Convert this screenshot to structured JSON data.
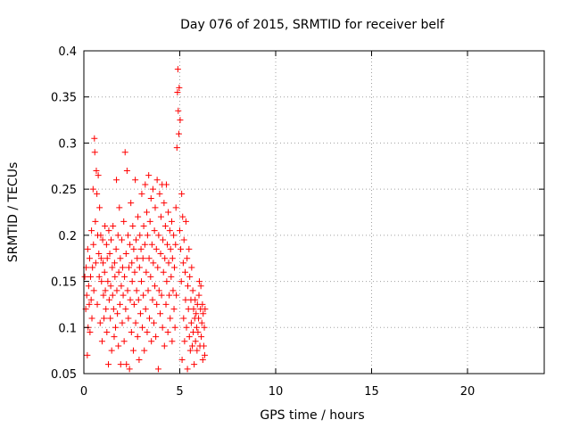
{
  "chart_data": {
    "type": "scatter",
    "title": "Day 076 of 2015, SRMTID for receiver belf",
    "xlabel": "GPS time / hours",
    "ylabel": "SRMTID / TECUs",
    "xlim": [
      0,
      24
    ],
    "ylim": [
      0.05,
      0.4
    ],
    "xticks": [
      0,
      5,
      10,
      15,
      20
    ],
    "xtick_labels": [
      "0",
      "5",
      "10",
      "15",
      "20"
    ],
    "yticks": [
      0.05,
      0.1,
      0.15,
      0.2,
      0.25,
      0.3,
      0.35,
      0.4
    ],
    "ytick_labels": [
      "0.05",
      "0.1",
      "0.15",
      "0.2",
      "0.25",
      "0.3",
      "0.35",
      "0.4"
    ],
    "grid": true,
    "marker": "+",
    "color": "#ff0000",
    "series": [
      {
        "points": [
          [
            0.05,
            0.155
          ],
          [
            0.1,
            0.12
          ],
          [
            0.12,
            0.165
          ],
          [
            0.15,
            0.135
          ],
          [
            0.18,
            0.07
          ],
          [
            0.2,
            0.185
          ],
          [
            0.22,
            0.1
          ],
          [
            0.25,
            0.145
          ],
          [
            0.28,
            0.125
          ],
          [
            0.3,
            0.175
          ],
          [
            0.32,
            0.095
          ],
          [
            0.35,
            0.155
          ],
          [
            0.38,
            0.13
          ],
          [
            0.4,
            0.205
          ],
          [
            0.42,
            0.11
          ],
          [
            0.45,
            0.165
          ],
          [
            0.48,
            0.25
          ],
          [
            0.5,
            0.19
          ],
          [
            0.52,
            0.14
          ],
          [
            0.55,
            0.305
          ],
          [
            0.57,
            0.29
          ],
          [
            0.6,
            0.215
          ],
          [
            0.62,
            0.17
          ],
          [
            0.65,
            0.27
          ],
          [
            0.68,
            0.245
          ],
          [
            0.7,
            0.125
          ],
          [
            0.72,
            0.2
          ],
          [
            0.75,
            0.265
          ],
          [
            0.78,
            0.18
          ],
          [
            0.8,
            0.155
          ],
          [
            0.82,
            0.23
          ],
          [
            0.85,
            0.105
          ],
          [
            0.88,
            0.2
          ],
          [
            0.9,
            0.175
          ],
          [
            0.92,
            0.15
          ],
          [
            0.95,
            0.085
          ],
          [
            0.98,
            0.195
          ],
          [
            1.0,
            0.17
          ],
          [
            1.02,
            0.135
          ],
          [
            1.05,
            0.11
          ],
          [
            1.08,
            0.16
          ],
          [
            1.1,
            0.21
          ],
          [
            1.12,
            0.14
          ],
          [
            1.15,
            0.12
          ],
          [
            1.18,
            0.19
          ],
          [
            1.2,
            0.095
          ],
          [
            1.22,
            0.175
          ],
          [
            1.25,
            0.15
          ],
          [
            1.28,
            0.06
          ],
          [
            1.3,
            0.205
          ],
          [
            1.32,
            0.13
          ],
          [
            1.35,
            0.18
          ],
          [
            1.38,
            0.11
          ],
          [
            1.4,
            0.145
          ],
          [
            1.42,
            0.195
          ],
          [
            1.45,
            0.075
          ],
          [
            1.48,
            0.165
          ],
          [
            1.5,
            0.135
          ],
          [
            1.52,
            0.21
          ],
          [
            1.55,
            0.12
          ],
          [
            1.58,
            0.09
          ],
          [
            1.6,
            0.17
          ],
          [
            1.62,
            0.155
          ],
          [
            1.65,
            0.1
          ],
          [
            1.68,
            0.185
          ],
          [
            1.7,
            0.26
          ],
          [
            1.72,
            0.14
          ],
          [
            1.75,
            0.115
          ],
          [
            1.78,
            0.2
          ],
          [
            1.8,
            0.08
          ],
          [
            1.82,
            0.16
          ],
          [
            1.85,
            0.23
          ],
          [
            1.88,
            0.125
          ],
          [
            1.9,
            0.175
          ],
          [
            1.92,
            0.06
          ],
          [
            1.95,
            0.145
          ],
          [
            1.98,
            0.195
          ],
          [
            2.0,
            0.105
          ],
          [
            2.02,
            0.165
          ],
          [
            2.05,
            0.135
          ],
          [
            2.08,
            0.215
          ],
          [
            2.1,
            0.085
          ],
          [
            2.12,
            0.155
          ],
          [
            2.15,
            0.29
          ],
          [
            2.18,
            0.12
          ],
          [
            2.2,
            0.18
          ],
          [
            2.22,
            0.06
          ],
          [
            2.25,
            0.27
          ],
          [
            2.28,
            0.14
          ],
          [
            2.3,
            0.2
          ],
          [
            2.32,
            0.11
          ],
          [
            2.35,
            0.165
          ],
          [
            2.38,
            0.055
          ],
          [
            2.4,
            0.19
          ],
          [
            2.42,
            0.13
          ],
          [
            2.45,
            0.235
          ],
          [
            2.48,
            0.095
          ],
          [
            2.5,
            0.17
          ],
          [
            2.52,
            0.15
          ],
          [
            2.55,
            0.21
          ],
          [
            2.58,
            0.075
          ],
          [
            2.6,
            0.185
          ],
          [
            2.62,
            0.125
          ],
          [
            2.65,
            0.16
          ],
          [
            2.68,
            0.26
          ],
          [
            2.7,
            0.105
          ],
          [
            2.72,
            0.195
          ],
          [
            2.75,
            0.14
          ],
          [
            2.78,
            0.175
          ],
          [
            2.8,
            0.09
          ],
          [
            2.82,
            0.22
          ],
          [
            2.85,
            0.13
          ],
          [
            2.88,
            0.065
          ],
          [
            2.9,
            0.165
          ],
          [
            2.92,
            0.2
          ],
          [
            2.95,
            0.115
          ],
          [
            2.98,
            0.185
          ],
          [
            3.0,
            0.15
          ],
          [
            3.02,
            0.245
          ],
          [
            3.05,
            0.1
          ],
          [
            3.08,
            0.175
          ],
          [
            3.1,
            0.135
          ],
          [
            3.12,
            0.21
          ],
          [
            3.15,
            0.075
          ],
          [
            3.18,
            0.19
          ],
          [
            3.2,
            0.255
          ],
          [
            3.22,
            0.12
          ],
          [
            3.25,
            0.16
          ],
          [
            3.28,
            0.225
          ],
          [
            3.3,
            0.095
          ],
          [
            3.32,
            0.2
          ],
          [
            3.35,
            0.14
          ],
          [
            3.38,
            0.265
          ],
          [
            3.4,
            0.175
          ],
          [
            3.42,
            0.11
          ],
          [
            3.45,
            0.215
          ],
          [
            3.48,
            0.155
          ],
          [
            3.5,
            0.24
          ],
          [
            3.52,
            0.085
          ],
          [
            3.55,
            0.19
          ],
          [
            3.58,
            0.13
          ],
          [
            3.6,
            0.25
          ],
          [
            3.62,
            0.17
          ],
          [
            3.65,
            0.105
          ],
          [
            3.68,
            0.205
          ],
          [
            3.7,
            0.145
          ],
          [
            3.72,
            0.23
          ],
          [
            3.75,
            0.09
          ],
          [
            3.78,
            0.185
          ],
          [
            3.8,
            0.125
          ],
          [
            3.82,
            0.26
          ],
          [
            3.85,
            0.165
          ],
          [
            3.88,
            0.055
          ],
          [
            3.9,
            0.2
          ],
          [
            3.92,
            0.14
          ],
          [
            3.95,
            0.245
          ],
          [
            3.98,
            0.115
          ],
          [
            4.0,
            0.18
          ],
          [
            4.02,
            0.22
          ],
          [
            4.05,
            0.135
          ],
          [
            4.08,
            0.255
          ],
          [
            4.1,
            0.1
          ],
          [
            4.12,
            0.195
          ],
          [
            4.15,
            0.16
          ],
          [
            4.18,
            0.235
          ],
          [
            4.2,
            0.08
          ],
          [
            4.22,
            0.175
          ],
          [
            4.25,
            0.21
          ],
          [
            4.28,
            0.125
          ],
          [
            4.3,
            0.255
          ],
          [
            4.32,
            0.15
          ],
          [
            4.35,
            0.19
          ],
          [
            4.38,
            0.095
          ],
          [
            4.4,
            0.225
          ],
          [
            4.42,
            0.17
          ],
          [
            4.45,
            0.135
          ],
          [
            4.48,
            0.205
          ],
          [
            4.5,
            0.11
          ],
          [
            4.52,
            0.185
          ],
          [
            4.55,
            0.155
          ],
          [
            4.58,
            0.215
          ],
          [
            4.6,
            0.085
          ],
          [
            4.62,
            0.175
          ],
          [
            4.65,
            0.14
          ],
          [
            4.68,
            0.2
          ],
          [
            4.7,
            0.12
          ],
          [
            4.72,
            0.165
          ],
          [
            4.75,
            0.1
          ],
          [
            4.78,
            0.19
          ],
          [
            4.8,
            0.23
          ],
          [
            4.82,
            0.135
          ],
          [
            4.85,
            0.295
          ],
          [
            4.88,
            0.355
          ],
          [
            4.9,
            0.38
          ],
          [
            4.92,
            0.335
          ],
          [
            4.95,
            0.31
          ],
          [
            4.97,
            0.36
          ],
          [
            5.0,
            0.205
          ],
          [
            5.02,
            0.325
          ],
          [
            5.05,
            0.185
          ],
          [
            5.08,
            0.15
          ],
          [
            5.1,
            0.245
          ],
          [
            5.12,
            0.065
          ],
          [
            5.15,
            0.22
          ],
          [
            5.18,
            0.17
          ],
          [
            5.2,
            0.11
          ],
          [
            5.22,
            0.195
          ],
          [
            5.25,
            0.085
          ],
          [
            5.28,
            0.16
          ],
          [
            5.3,
            0.13
          ],
          [
            5.32,
            0.215
          ],
          [
            5.35,
            0.1
          ],
          [
            5.38,
            0.175
          ],
          [
            5.4,
            0.055
          ],
          [
            5.42,
            0.145
          ],
          [
            5.45,
            0.12
          ],
          [
            5.48,
            0.185
          ],
          [
            5.5,
            0.09
          ],
          [
            5.52,
            0.155
          ],
          [
            5.55,
            0.075
          ],
          [
            5.58,
            0.13
          ],
          [
            5.6,
            0.105
          ],
          [
            5.62,
            0.165
          ],
          [
            5.65,
            0.08
          ],
          [
            5.68,
            0.14
          ],
          [
            5.7,
            0.095
          ],
          [
            5.72,
            0.12
          ],
          [
            5.75,
            0.06
          ],
          [
            5.78,
            0.11
          ],
          [
            5.8,
            0.13
          ],
          [
            5.82,
            0.085
          ],
          [
            5.85,
            0.115
          ],
          [
            5.88,
            0.1
          ],
          [
            5.9,
            0.075
          ],
          [
            5.92,
            0.125
          ],
          [
            5.95,
            0.095
          ],
          [
            5.98,
            0.11
          ],
          [
            6.0,
            0.135
          ],
          [
            6.02,
            0.15
          ],
          [
            6.05,
            0.08
          ],
          [
            6.08,
            0.12
          ],
          [
            6.1,
            0.145
          ],
          [
            6.12,
            0.09
          ],
          [
            6.15,
            0.105
          ],
          [
            6.18,
            0.125
          ],
          [
            6.2,
            0.065
          ],
          [
            6.22,
            0.115
          ],
          [
            6.25,
            0.08
          ],
          [
            6.28,
            0.1
          ],
          [
            6.3,
            0.07
          ],
          [
            6.32,
            0.12
          ]
        ]
      }
    ]
  }
}
